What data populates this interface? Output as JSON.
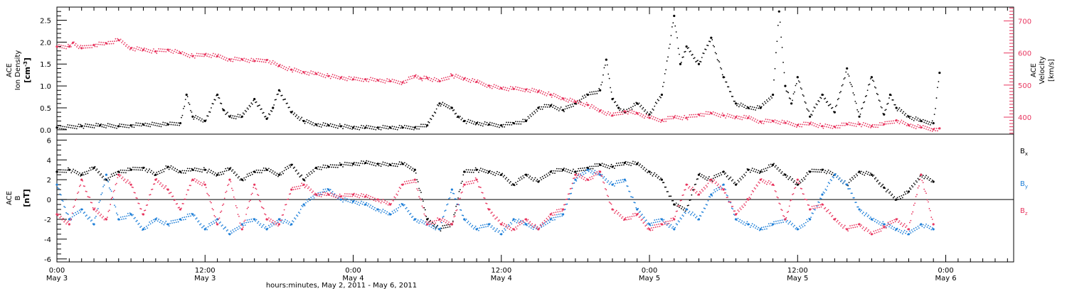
{
  "colors": {
    "black": "#000000",
    "pink": "#e8365f",
    "blue": "#1e7fd8"
  },
  "x_axis": {
    "label": "hours:minutes, May  2, 2011 - May  6, 2011",
    "ticks": [
      {
        "t": 0,
        "time": "0:00",
        "date": "May 3"
      },
      {
        "t": 12,
        "time": "12:00",
        "date": "May 3"
      },
      {
        "t": 24,
        "time": "0:00",
        "date": "May 4"
      },
      {
        "t": 36,
        "time": "12:00",
        "date": "May 4"
      },
      {
        "t": 48,
        "time": "0:00",
        "date": "May 5"
      },
      {
        "t": 60,
        "time": "12:00",
        "date": "May 5"
      },
      {
        "t": 72,
        "time": "0:00",
        "date": "May 6"
      }
    ]
  },
  "chart_data": [
    {
      "type": "scatter",
      "panel": "top",
      "xlim": [
        0,
        77.5
      ],
      "left_axis": {
        "label_lines": [
          "ACE",
          "Ion Density"
        ],
        "unit_base": "[cm",
        "unit_sup": "-3",
        "unit_end": "]",
        "ylim": [
          -0.1,
          2.8
        ],
        "ticks": [
          "0.0",
          "0.5",
          "1.0",
          "1.5",
          "2.0",
          "2.5"
        ]
      },
      "right_axis": {
        "label_lines": [
          "ACE",
          "Velocity",
          "[km/s]"
        ],
        "ylim": [
          347,
          743
        ],
        "ticks": [
          "400",
          "500",
          "600",
          "700"
        ]
      },
      "series": [
        {
          "axis": "left",
          "color": "black",
          "x": [
            0,
            2,
            3.5,
            5,
            6,
            7,
            9,
            10,
            10.5,
            11,
            12,
            13,
            13.5,
            14,
            15,
            16,
            17,
            17.5,
            18,
            19,
            20,
            21,
            22,
            23,
            24,
            25,
            26,
            27,
            28,
            29,
            30,
            31,
            32,
            32.5,
            33,
            34,
            35,
            36,
            37,
            38,
            39,
            40,
            41,
            42,
            43,
            44,
            44.5,
            45,
            45.5,
            46,
            47,
            48,
            49,
            50,
            50.5,
            51,
            52,
            53,
            54,
            55,
            56,
            57,
            58,
            58.5,
            59,
            59.5,
            60,
            61,
            62,
            63,
            64,
            65,
            66,
            67,
            67.5,
            68,
            69,
            70,
            71,
            71.5
          ],
          "y": [
            0.05,
            0.08,
            0.1,
            0.08,
            0.1,
            0.12,
            0.12,
            0.15,
            0.8,
            0.3,
            0.2,
            0.8,
            0.45,
            0.3,
            0.3,
            0.7,
            0.25,
            0.5,
            0.9,
            0.4,
            0.2,
            0.12,
            0.1,
            0.08,
            0.05,
            0.05,
            0.05,
            0.05,
            0.05,
            0.05,
            0.1,
            0.6,
            0.5,
            0.3,
            0.2,
            0.15,
            0.12,
            0.1,
            0.15,
            0.2,
            0.5,
            0.55,
            0.45,
            0.6,
            0.8,
            0.9,
            1.6,
            0.7,
            0.5,
            0.4,
            0.6,
            0.35,
            0.8,
            2.6,
            1.5,
            1.9,
            1.5,
            2.1,
            1.2,
            0.6,
            0.5,
            0.5,
            0.8,
            2.7,
            1.0,
            0.6,
            1.2,
            0.3,
            0.8,
            0.4,
            1.4,
            0.3,
            1.2,
            0.35,
            0.8,
            0.5,
            0.3,
            0.2,
            0.15,
            1.3
          ]
        },
        {
          "axis": "right",
          "color": "pink",
          "x": [
            0,
            1,
            1.3,
            2,
            3,
            4,
            5,
            6,
            7,
            8,
            9,
            10,
            11,
            12,
            13,
            14,
            15,
            16,
            17,
            18,
            19,
            20,
            21,
            22,
            23,
            24,
            25,
            26,
            27,
            28,
            29,
            29.5,
            30,
            31,
            32,
            33,
            34,
            35,
            36,
            37,
            38,
            39,
            40,
            41,
            42,
            43,
            44,
            45,
            46,
            47,
            48,
            49,
            50,
            51,
            52,
            53,
            54,
            55,
            56,
            57,
            58,
            59,
            60,
            61,
            62,
            63,
            64,
            65,
            66,
            67,
            68,
            69,
            70,
            71,
            71.5
          ],
          "y": [
            620,
            620,
            632,
            615,
            625,
            630,
            640,
            615,
            610,
            605,
            610,
            600,
            590,
            595,
            590,
            580,
            580,
            575,
            578,
            560,
            548,
            540,
            535,
            528,
            523,
            518,
            518,
            515,
            512,
            508,
            528,
            520,
            522,
            512,
            530,
            520,
            510,
            498,
            490,
            488,
            486,
            480,
            470,
            458,
            448,
            438,
            420,
            405,
            418,
            412,
            398,
            390,
            400,
            398,
            408,
            412,
            405,
            400,
            398,
            386,
            388,
            382,
            375,
            380,
            372,
            370,
            378,
            378,
            372,
            378,
            390,
            375,
            368,
            362,
            365
          ]
        }
      ]
    },
    {
      "type": "scatter",
      "panel": "bottom",
      "xlim": [
        0,
        77.5
      ],
      "left_axis": {
        "label_lines": [
          "ACE",
          "B",
          "[nT]"
        ],
        "ylim": [
          -6.3,
          6.6
        ],
        "ticks": [
          "-6",
          "-4",
          "-2",
          "0",
          "2",
          "4",
          "6"
        ]
      },
      "legend": [
        {
          "base": "B",
          "sub": "x",
          "color": "black"
        },
        {
          "base": "B",
          "sub": "y",
          "color": "blue"
        },
        {
          "base": "B",
          "sub": "z",
          "color": "pink"
        }
      ],
      "series": [
        {
          "name": "Bx",
          "color": "black",
          "x": [
            0,
            1,
            2,
            3,
            4,
            5,
            6,
            7,
            8,
            9,
            10,
            11,
            12,
            13,
            14,
            15,
            16,
            17,
            18,
            19,
            20,
            21,
            22,
            23,
            24,
            25,
            26,
            27,
            28,
            29,
            30,
            31,
            32,
            33,
            34,
            35,
            36,
            37,
            38,
            39,
            40,
            41,
            42,
            43,
            44,
            45,
            46,
            47,
            48,
            49,
            50,
            51,
            52,
            53,
            54,
            55,
            56,
            57,
            58,
            59,
            60,
            61,
            62,
            63,
            64,
            65,
            66,
            67,
            68,
            69,
            70,
            71
          ],
          "y": [
            2.8,
            3.0,
            2.5,
            3.2,
            2.0,
            2.8,
            3.0,
            3.2,
            2.5,
            3.3,
            2.8,
            3.0,
            3.0,
            2.5,
            3.1,
            2.0,
            2.8,
            3.0,
            2.5,
            3.5,
            2.0,
            3.2,
            3.3,
            3.5,
            3.6,
            3.7,
            3.6,
            3.5,
            3.6,
            3.0,
            -2.0,
            -3.0,
            -2.5,
            2.8,
            3.0,
            2.8,
            2.5,
            1.5,
            2.5,
            1.8,
            2.8,
            3.0,
            2.8,
            3.2,
            3.5,
            3.3,
            3.7,
            3.6,
            2.8,
            2.0,
            -0.5,
            -1.0,
            2.5,
            2.0,
            2.8,
            1.5,
            3.0,
            2.8,
            3.5,
            2.5,
            1.5,
            2.8,
            3.0,
            2.5,
            1.5,
            2.8,
            2.5,
            1.2,
            0.0,
            0.8,
            2.5,
            1.8
          ]
        },
        {
          "name": "By",
          "color": "blue",
          "x": [
            0,
            1,
            2,
            3,
            4,
            5,
            6,
            7,
            8,
            9,
            10,
            11,
            12,
            13,
            14,
            15,
            16,
            17,
            18,
            19,
            20,
            21,
            22,
            23,
            24,
            25,
            26,
            27,
            28,
            29,
            30,
            31,
            32,
            33,
            34,
            35,
            36,
            37,
            38,
            39,
            40,
            41,
            42,
            43,
            44,
            45,
            46,
            47,
            48,
            49,
            50,
            51,
            52,
            53,
            54,
            55,
            56,
            57,
            58,
            59,
            60,
            61,
            62,
            63,
            64,
            65,
            66,
            67,
            68,
            69,
            70,
            71
          ],
          "y": [
            1.5,
            -2.0,
            -1.0,
            -2.5,
            2.5,
            -2.0,
            -1.5,
            -3.0,
            -2.0,
            -2.5,
            -2.0,
            -1.5,
            -3.0,
            -2.0,
            -3.5,
            -2.5,
            -2.0,
            -3.0,
            -2.0,
            -2.5,
            -0.5,
            0.5,
            1.0,
            0.0,
            -0.2,
            -0.5,
            -1.0,
            -1.5,
            -0.5,
            -2.0,
            -2.5,
            -3.0,
            1.0,
            -2.0,
            -3.0,
            -2.5,
            -3.5,
            -2.0,
            -2.5,
            -3.0,
            -2.0,
            -1.5,
            2.0,
            3.0,
            2.5,
            1.5,
            2.0,
            -1.0,
            -2.5,
            -2.0,
            -3.0,
            -1.0,
            -2.0,
            0.5,
            1.5,
            -2.0,
            -2.5,
            -3.0,
            -2.5,
            -2.0,
            -3.0,
            -2.0,
            0.5,
            2.5,
            1.5,
            -1.0,
            -2.0,
            -2.5,
            -3.0,
            -3.5,
            -2.5,
            -3.0
          ]
        },
        {
          "name": "Bz",
          "color": "pink",
          "x": [
            0,
            1,
            2,
            3,
            4,
            5,
            6,
            7,
            8,
            9,
            10,
            11,
            12,
            13,
            14,
            15,
            16,
            17,
            18,
            19,
            20,
            21,
            22,
            23,
            24,
            25,
            26,
            27,
            28,
            29,
            30,
            31,
            32,
            33,
            34,
            35,
            36,
            37,
            38,
            39,
            40,
            41,
            42,
            43,
            44,
            45,
            46,
            47,
            48,
            49,
            50,
            51,
            52,
            53,
            54,
            55,
            56,
            57,
            58,
            59,
            60,
            61,
            62,
            63,
            64,
            65,
            66,
            67,
            68,
            69,
            70,
            71
          ],
          "y": [
            -1.5,
            -2.5,
            2.0,
            -1.0,
            -2.0,
            2.5,
            1.5,
            -1.5,
            2.0,
            1.0,
            -1.0,
            2.0,
            1.5,
            -2.5,
            2.0,
            -3.0,
            1.5,
            -2.0,
            -2.5,
            1.0,
            1.5,
            0.5,
            0.5,
            0.3,
            0.5,
            0.3,
            0.0,
            -0.5,
            1.5,
            2.0,
            -2.5,
            -2.0,
            -2.5,
            1.5,
            2.0,
            -1.0,
            -2.5,
            -3.0,
            -2.0,
            -3.0,
            -1.5,
            -1.0,
            2.5,
            2.0,
            2.8,
            -1.0,
            -2.0,
            -1.5,
            -3.0,
            -2.5,
            -2.0,
            1.5,
            0.5,
            2.0,
            1.0,
            -1.5,
            0.0,
            2.0,
            1.5,
            -2.0,
            2.0,
            -1.0,
            -0.5,
            -2.0,
            -3.0,
            -2.5,
            -3.5,
            -2.8,
            -2.0,
            -3.0,
            2.5,
            -2.5
          ]
        }
      ]
    }
  ]
}
